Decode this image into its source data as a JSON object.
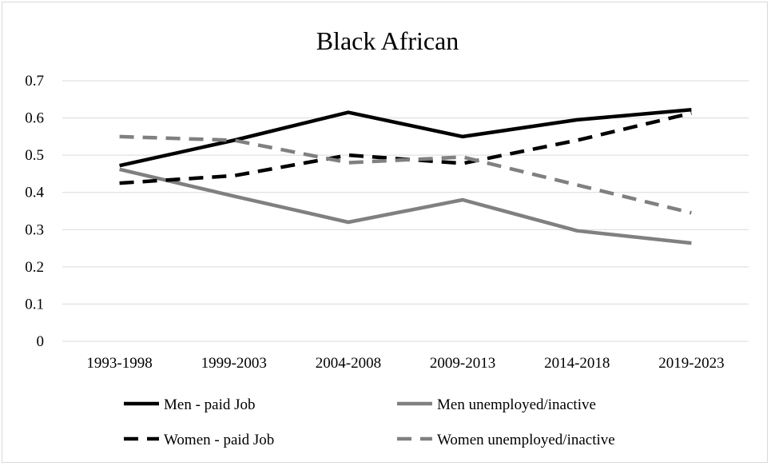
{
  "chart_data": {
    "type": "line",
    "title": "Black African",
    "xlabel": "",
    "ylabel": "",
    "categories": [
      "1993-1998",
      "1999-2003",
      "2004-2008",
      "2009-2013",
      "2014-2018",
      "2019-2023"
    ],
    "ylim": [
      0,
      0.7
    ],
    "yticks": [
      "0",
      "0.1",
      "0.2",
      "0.3",
      "0.4",
      "0.5",
      "0.6",
      "0.7"
    ],
    "grid": true,
    "legend_position": "bottom",
    "series": [
      {
        "name": "Men - paid Job",
        "values": [
          0.472,
          0.54,
          0.615,
          0.55,
          0.595,
          0.622
        ],
        "color": "#000000",
        "dash": "solid"
      },
      {
        "name": "Men unemployed/inactive",
        "values": [
          0.462,
          0.39,
          0.32,
          0.38,
          0.297,
          0.264
        ],
        "color": "#808080",
        "dash": "solid"
      },
      {
        "name": "Women - paid Job",
        "values": [
          0.425,
          0.445,
          0.5,
          0.478,
          0.54,
          0.613
        ],
        "color": "#000000",
        "dash": "dashed"
      },
      {
        "name": "Women unemployed/inactive",
        "values": [
          0.55,
          0.54,
          0.48,
          0.495,
          0.42,
          0.345
        ],
        "color": "#808080",
        "dash": "dashed"
      }
    ]
  }
}
